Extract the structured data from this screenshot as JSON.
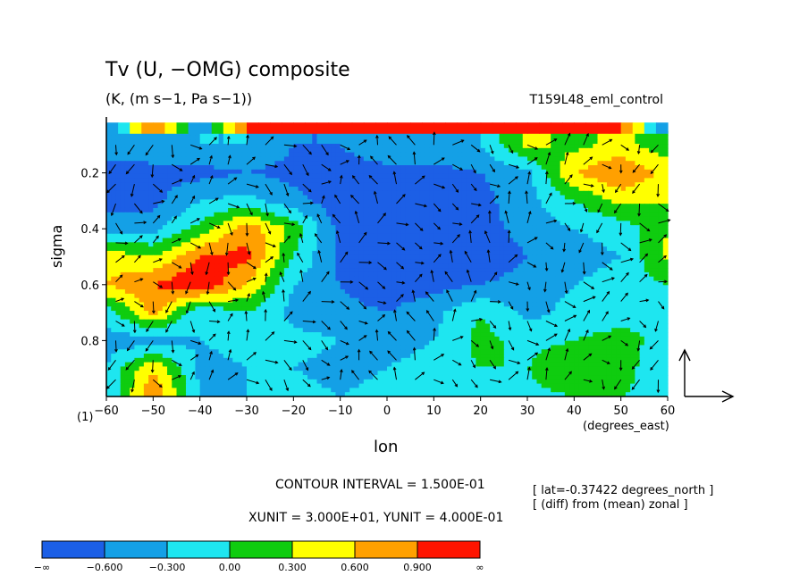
{
  "title": "Tv (U, −OMG) composite",
  "subtitle": "(K, (m s−1, Pa s−1))",
  "run_name": "T159L48_eml_control",
  "level_marker": "(1)",
  "notes": {
    "contour_interval": "CONTOUR INTERVAL = 1.500E-01",
    "units": "XUNIT = 3.000E+01, YUNIT = 4.000E-01",
    "lat": "[ lat=-0.37422 degrees_north ]",
    "diff": "[ (diff) from (mean) zonal ]"
  },
  "chart_data": {
    "type": "heatmap",
    "title": "Tv (U, −OMG) composite",
    "subtitle": "(K, (m s−1, Pa s−1))",
    "xlabel": "lon",
    "xunits": "(degrees_east)",
    "ylabel": "sigma",
    "xlim": [
      -60,
      60
    ],
    "ylim": [
      1.0,
      0.0
    ],
    "xticks": [
      -60,
      -50,
      -40,
      -30,
      -20,
      -10,
      0,
      10,
      20,
      30,
      40,
      50,
      60
    ],
    "yticks": [
      0.2,
      0.4,
      0.6,
      0.8
    ],
    "overlay": "vectors (U, −OMG)",
    "colorbar": {
      "levels": [
        "−∞",
        "−0.600",
        "−0.300",
        "0.00",
        "0.300",
        "0.600",
        "0.900",
        "∞"
      ],
      "colors": [
        "#1c5fe6",
        "#14a0e6",
        "#1ee6f0",
        "#0fcc0f",
        "#ffff00",
        "#ffa000",
        "#ff1400"
      ]
    },
    "lons": [
      -60,
      -50,
      -40,
      -30,
      -20,
      -10,
      0,
      10,
      20,
      30,
      40,
      50,
      60
    ],
    "sigmas": [
      0.1,
      0.2,
      0.3,
      0.4,
      0.5,
      0.6,
      0.7,
      0.8,
      0.9,
      1.0
    ],
    "values": [
      [
        -0.5,
        -0.4,
        -0.3,
        -0.3,
        -0.6,
        -0.6,
        -0.4,
        -0.4,
        -0.3,
        0.4,
        0.2,
        0.4,
        0.1
      ],
      [
        -0.7,
        -0.7,
        -0.7,
        -0.6,
        -0.7,
        -0.7,
        -0.7,
        -0.7,
        -0.6,
        -0.4,
        0.6,
        0.9,
        0.5
      ],
      [
        -0.7,
        -0.7,
        -0.3,
        -0.2,
        -0.5,
        -0.8,
        -0.8,
        -0.8,
        -0.7,
        -0.4,
        0.0,
        0.4,
        0.3
      ],
      [
        -0.5,
        -0.4,
        0.1,
        0.8,
        0.2,
        -0.7,
        -0.9,
        -0.8,
        -0.7,
        -0.5,
        -0.3,
        -0.2,
        0.3
      ],
      [
        0.5,
        0.3,
        0.9,
        1.0,
        0.0,
        -0.7,
        -0.9,
        -0.8,
        -0.8,
        -0.6,
        -0.4,
        -0.3,
        0.4
      ],
      [
        0.6,
        0.9,
        1.2,
        0.6,
        -0.3,
        -0.6,
        -0.8,
        -0.7,
        -0.6,
        -0.5,
        -0.3,
        -0.2,
        0.0
      ],
      [
        -0.2,
        0.7,
        -0.3,
        0.0,
        -0.4,
        -0.5,
        -0.6,
        -0.4,
        0.0,
        -0.4,
        -0.2,
        -0.1,
        -0.1
      ],
      [
        -0.4,
        -0.5,
        -0.3,
        -0.2,
        -0.2,
        -0.3,
        -0.4,
        -0.3,
        0.1,
        -0.1,
        0.0,
        0.1,
        -0.1
      ],
      [
        -0.3,
        0.6,
        -0.4,
        -0.3,
        -0.3,
        -0.4,
        -0.3,
        -0.2,
        0.0,
        0.0,
        0.3,
        0.1,
        -0.2
      ],
      [
        -0.3,
        0.9,
        -0.3,
        -0.3,
        -0.2,
        -0.3,
        -0.2,
        -0.3,
        -0.2,
        -0.1,
        0.0,
        0.0,
        -0.1
      ]
    ],
    "top_layer_values": [
      -0.7,
      1.0,
      -0.5,
      1.0,
      1.0,
      1.0,
      0.9,
      1.0,
      1.0,
      1.0,
      1.0,
      1.0,
      -0.7
    ]
  }
}
